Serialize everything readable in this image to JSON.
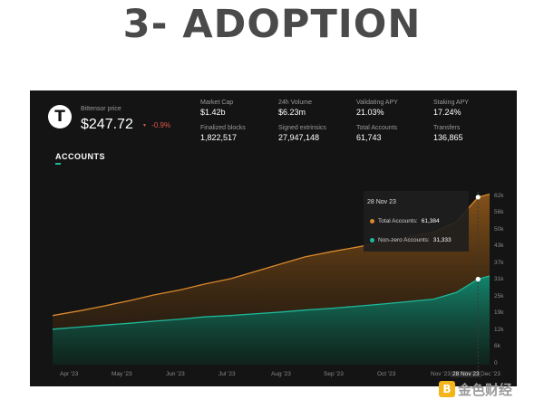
{
  "slide": {
    "title": "3- ADOPTION"
  },
  "price": {
    "logo": "T",
    "label": "Bittensor price",
    "value": "$247.72",
    "change": "-0.9%",
    "change_arrow": "▼"
  },
  "stats": [
    {
      "label": "Market Cap",
      "value": "$1.42b"
    },
    {
      "label": "24h Volume",
      "value": "$6.23m"
    },
    {
      "label": "Validating APY",
      "value": "21.03%"
    },
    {
      "label": "Staking APY",
      "value": "17.24%"
    },
    {
      "label": "Finalized blocks",
      "value": "1,822,517"
    },
    {
      "label": "Signed extrinsics",
      "value": "27,947,148"
    },
    {
      "label": "Total Accounts",
      "value": "61,743"
    },
    {
      "label": "Transfers",
      "value": "136,865"
    }
  ],
  "accounts_section": {
    "title": "ACCOUNTS"
  },
  "tooltip": {
    "date": "28 Nov 23",
    "rows": [
      {
        "label": "Total Accounts:",
        "value": "61,384",
        "color": "#d9882e"
      },
      {
        "label": "Non-zero Accounts:",
        "value": "31,333",
        "color": "#1fb89a"
      }
    ]
  },
  "watermark": {
    "text": "金色财经"
  },
  "chart_data": {
    "type": "area",
    "title": "ACCOUNTS",
    "x_tick_labels": [
      "Apr '23",
      "May '23",
      "Jun '23",
      "Jul '23",
      "Aug '23",
      "Sep '23",
      "Oct '23",
      "Nov '23",
      "28 Nov 23",
      "Dec '23"
    ],
    "y_tick_labels": [
      "62k",
      "56k",
      "50k",
      "43k",
      "37k",
      "31k",
      "25k",
      "19k",
      "12k",
      "6k",
      "0"
    ],
    "ylim": [
      0,
      62000
    ],
    "x": [
      "2023-03-15",
      "2023-04-01",
      "2023-04-15",
      "2023-05-01",
      "2023-05-15",
      "2023-06-01",
      "2023-06-15",
      "2023-07-01",
      "2023-07-15",
      "2023-08-01",
      "2023-08-15",
      "2023-09-01",
      "2023-09-15",
      "2023-10-01",
      "2023-10-15",
      "2023-11-01",
      "2023-11-15",
      "2023-11-28",
      "2023-12-05"
    ],
    "series": [
      {
        "name": "Total Accounts",
        "color": "#d9882e",
        "values": [
          18000,
          19800,
          21500,
          23500,
          25500,
          27500,
          29500,
          31500,
          34000,
          37000,
          39500,
          41500,
          43000,
          44800,
          46500,
          48500,
          52500,
          61384,
          62500
        ]
      },
      {
        "name": "Non-zero Accounts",
        "color": "#1fb89a",
        "values": [
          13000,
          13800,
          14500,
          15200,
          15900,
          16700,
          17500,
          18000,
          18600,
          19300,
          20000,
          20700,
          21400,
          22200,
          23000,
          24000,
          26500,
          31333,
          32500
        ]
      }
    ],
    "highlight": {
      "x": "28 Nov 23",
      "total": 61384,
      "non_zero": 31333
    },
    "grid": false
  }
}
